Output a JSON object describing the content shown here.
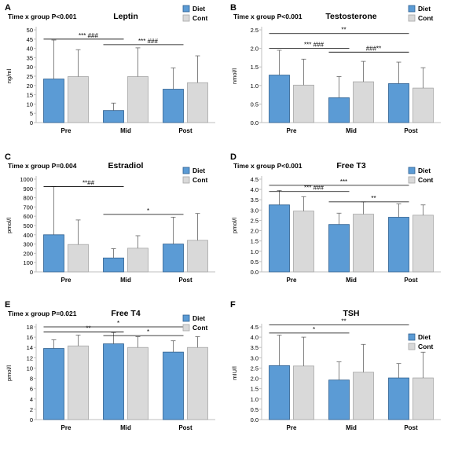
{
  "colors": {
    "diet": "#5b9bd5",
    "diet_edge": "#2e5f8f",
    "cont": "#d9d9d9",
    "cont_edge": "#a6a6a6",
    "axis": "#bfbfbf",
    "text": "#000000"
  },
  "chart_data": [
    {
      "type": "bar",
      "panel": "A",
      "title": "Leptin",
      "stat": "Time x group P<0.001",
      "ylabel": "ng/ml",
      "ylim": [
        0,
        50
      ],
      "yticks": [
        "0",
        "5",
        "10",
        "15",
        "20",
        "25",
        "30",
        "35",
        "40",
        "45",
        "50"
      ],
      "categories": [
        "Pre",
        "Mid",
        "Post"
      ],
      "series": [
        {
          "name": "Diet",
          "values": [
            23.5,
            6.5,
            18.0
          ],
          "errors": [
            21,
            4,
            11.5
          ]
        },
        {
          "name": "Cont",
          "values": [
            24.8,
            24.8,
            21.5
          ],
          "errors": [
            14.5,
            15.5,
            14.5
          ]
        }
      ],
      "legend": "top-right",
      "annotations": [
        {
          "label": "*** ###",
          "from": "Pre",
          "to": "Mid",
          "y": 45
        },
        {
          "label": "*** ###",
          "from": "Mid",
          "to": "Post",
          "y": 42
        }
      ]
    },
    {
      "type": "bar",
      "panel": "B",
      "title": "Testosterone",
      "stat": "Time x group P<0.001",
      "ylabel": "nmol/l",
      "ylim": [
        0,
        2.5
      ],
      "yticks": [
        "0.0",
        "0.5",
        "1.0",
        "1.5",
        "2.0",
        "2.5"
      ],
      "categories": [
        "Pre",
        "Mid",
        "Post"
      ],
      "series": [
        {
          "name": "Diet",
          "values": [
            1.28,
            0.67,
            1.05
          ],
          "errors": [
            0.67,
            0.57,
            0.58
          ]
        },
        {
          "name": "Cont",
          "values": [
            1.01,
            1.1,
            0.93
          ],
          "errors": [
            0.7,
            0.55,
            0.55
          ]
        }
      ],
      "legend": "top-right",
      "annotations": [
        {
          "label": "**",
          "from": "Pre",
          "to": "Post",
          "y": 2.4
        },
        {
          "label": "*** ###",
          "from": "Pre",
          "to": "Mid",
          "y": 2.0
        },
        {
          "label": "###**",
          "from": "Mid",
          "to": "Post",
          "y": 1.9
        }
      ]
    },
    {
      "type": "bar",
      "panel": "C",
      "title": "Estradiol",
      "stat": "Time x group P=0.004",
      "ylabel": "pmol/l",
      "ylim": [
        0,
        1000
      ],
      "yticks": [
        "0",
        "100",
        "200",
        "300",
        "400",
        "500",
        "600",
        "700",
        "800",
        "900",
        "1000"
      ],
      "categories": [
        "Pre",
        "Mid",
        "Post"
      ],
      "series": [
        {
          "name": "Diet",
          "values": [
            400,
            150,
            300
          ],
          "errors": [
            520,
            100,
            290
          ]
        },
        {
          "name": "Cont",
          "values": [
            295,
            255,
            340
          ],
          "errors": [
            265,
            135,
            290
          ]
        }
      ],
      "legend": "top-right",
      "annotations": [
        {
          "label": "**##",
          "from": "Pre",
          "to": "Mid",
          "y": 920
        },
        {
          "label": "*",
          "from": "Mid",
          "to": "Post",
          "y": 620
        }
      ]
    },
    {
      "type": "bar",
      "panel": "D",
      "title": "Free T3",
      "stat": "Time x group P<0.001",
      "ylabel": "pmol/l",
      "ylim": [
        0,
        4.5
      ],
      "yticks": [
        "0.0",
        "0.5",
        "1.0",
        "1.5",
        "2.0",
        "2.5",
        "3.0",
        "3.5",
        "4.0",
        "4.5"
      ],
      "categories": [
        "Pre",
        "Mid",
        "Post"
      ],
      "series": [
        {
          "name": "Diet",
          "values": [
            3.25,
            2.3,
            2.65
          ],
          "errors": [
            0.7,
            0.55,
            0.65
          ]
        },
        {
          "name": "Cont",
          "values": [
            2.95,
            2.8,
            2.75
          ],
          "errors": [
            0.7,
            0.6,
            0.5
          ]
        }
      ],
      "legend": "top-right",
      "annotations": [
        {
          "label": "***",
          "from": "Pre",
          "to": "Post",
          "y": 4.2
        },
        {
          "label": "*** ###",
          "from": "Pre",
          "to": "Mid",
          "y": 3.9
        },
        {
          "label": "**",
          "from": "Mid",
          "to": "Post",
          "y": 3.4
        }
      ]
    },
    {
      "type": "bar",
      "panel": "E",
      "title": "Free T4",
      "stat": "Time x group P=0.021",
      "ylabel": "pmol/l",
      "ylim": [
        0,
        18
      ],
      "yticks": [
        "0",
        "2",
        "4",
        "6",
        "8",
        "10",
        "12",
        "14",
        "16",
        "18"
      ],
      "categories": [
        "Pre",
        "Mid",
        "Post"
      ],
      "series": [
        {
          "name": "Diet",
          "values": [
            13.8,
            14.7,
            13.1
          ],
          "errors": [
            1.7,
            2.2,
            2.2
          ]
        },
        {
          "name": "Cont",
          "values": [
            14.3,
            14.0,
            14.0
          ],
          "errors": [
            2.1,
            2.1,
            2.1
          ]
        }
      ],
      "legend": "top-right",
      "annotations": [
        {
          "label": "*",
          "from": "Pre",
          "to": "Post",
          "y": 18.0
        },
        {
          "label": "**",
          "from": "Pre",
          "to": "Mid",
          "y": 17.0
        },
        {
          "label": "*",
          "from": "Mid",
          "to": "Post",
          "y": 16.3
        }
      ]
    },
    {
      "type": "bar",
      "panel": "F",
      "title": "TSH",
      "stat": "",
      "ylabel": "mIU/l",
      "ylim": [
        0,
        4.5
      ],
      "yticks": [
        "0.0",
        "0.5",
        "1.0",
        "1.5",
        "2.0",
        "2.5",
        "3.0",
        "3.5",
        "4.0",
        "4.5"
      ],
      "categories": [
        "Pre",
        "Mid",
        "Post"
      ],
      "series": [
        {
          "name": "Diet",
          "values": [
            2.62,
            1.92,
            2.02
          ],
          "errors": [
            1.48,
            0.88,
            0.7
          ]
        },
        {
          "name": "Cont",
          "values": [
            2.6,
            2.3,
            2.02
          ],
          "errors": [
            1.4,
            1.35,
            1.25
          ]
        }
      ],
      "legend": "right",
      "annotations": [
        {
          "label": "**",
          "from": "Pre",
          "to": "Post",
          "y": 4.6
        },
        {
          "label": "*",
          "from": "Pre",
          "to": "Mid",
          "y": 4.2
        }
      ]
    }
  ]
}
